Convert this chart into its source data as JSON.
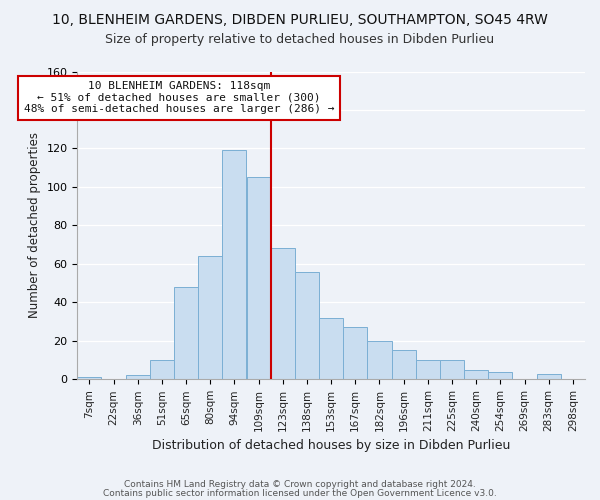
{
  "title": "10, BLENHEIM GARDENS, DIBDEN PURLIEU, SOUTHAMPTON, SO45 4RW",
  "subtitle": "Size of property relative to detached houses in Dibden Purlieu",
  "xlabel": "Distribution of detached houses by size in Dibden Purlieu",
  "ylabel": "Number of detached properties",
  "bar_labels": [
    "7sqm",
    "22sqm",
    "36sqm",
    "51sqm",
    "65sqm",
    "80sqm",
    "94sqm",
    "109sqm",
    "123sqm",
    "138sqm",
    "153sqm",
    "167sqm",
    "182sqm",
    "196sqm",
    "211sqm",
    "225sqm",
    "240sqm",
    "254sqm",
    "269sqm",
    "283sqm",
    "298sqm"
  ],
  "bar_values": [
    1,
    0,
    2,
    10,
    48,
    64,
    119,
    105,
    68,
    56,
    32,
    27,
    20,
    15,
    10,
    10,
    5,
    4,
    0,
    3,
    0
  ],
  "bar_color": "#c9ddf0",
  "bar_edge_color": "#7bafd4",
  "vline_index": 7.5,
  "vline_color": "#cc0000",
  "annotation_title": "10 BLENHEIM GARDENS: 118sqm",
  "annotation_line1": "← 51% of detached houses are smaller (300)",
  "annotation_line2": "48% of semi-detached houses are larger (286) →",
  "annotation_box_color": "#ffffff",
  "annotation_box_edge": "#cc0000",
  "ylim": [
    0,
    160
  ],
  "footer1": "Contains HM Land Registry data © Crown copyright and database right 2024.",
  "footer2": "Contains public sector information licensed under the Open Government Licence v3.0.",
  "background_color": "#eef2f8",
  "plot_bg_color": "#eef2f8",
  "figsize": [
    6.0,
    5.0
  ],
  "dpi": 100
}
